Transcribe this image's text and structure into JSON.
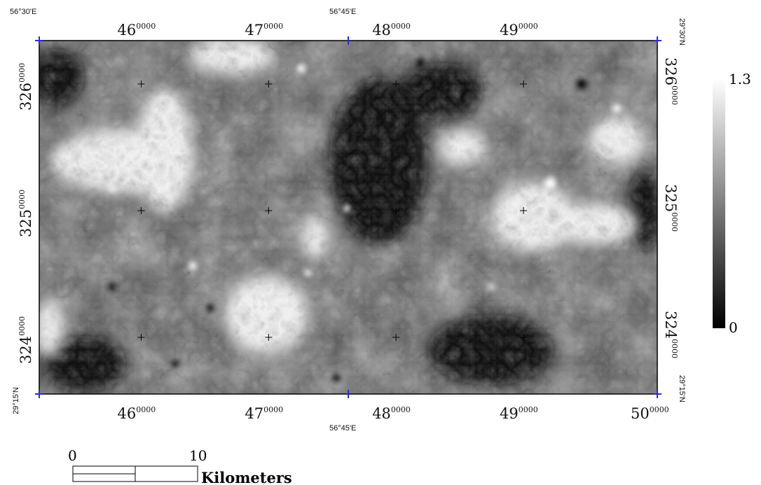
{
  "geo_labels": {
    "top_left_lon": "56°30'E",
    "top_mid_lon": "56°45'E",
    "top_right_lat": "29°30'N",
    "bottom_left_lat": "29°15'N",
    "bottom_mid_lon": "56°45'E",
    "bottom_right_lat": "29°15'N"
  },
  "x_ticks": [
    {
      "main": "46",
      "sup": "0000",
      "value": 460000
    },
    {
      "main": "47",
      "sup": "0000",
      "value": 470000
    },
    {
      "main": "48",
      "sup": "0000",
      "value": 480000
    },
    {
      "main": "49",
      "sup": "0000",
      "value": 490000
    }
  ],
  "x_tick_last": {
    "main": "50",
    "sup": "0000",
    "value": 500000
  },
  "y_ticks": [
    {
      "main": "326",
      "sup": "0000",
      "value": 3260000
    },
    {
      "main": "325",
      "sup": "0000",
      "value": 3250000
    },
    {
      "main": "324",
      "sup": "0000",
      "value": 3240000
    }
  ],
  "legend": {
    "max": "1.3",
    "min": "0"
  },
  "scale_bar": {
    "start": "0",
    "end": "10",
    "unit": "Kilometers"
  }
}
